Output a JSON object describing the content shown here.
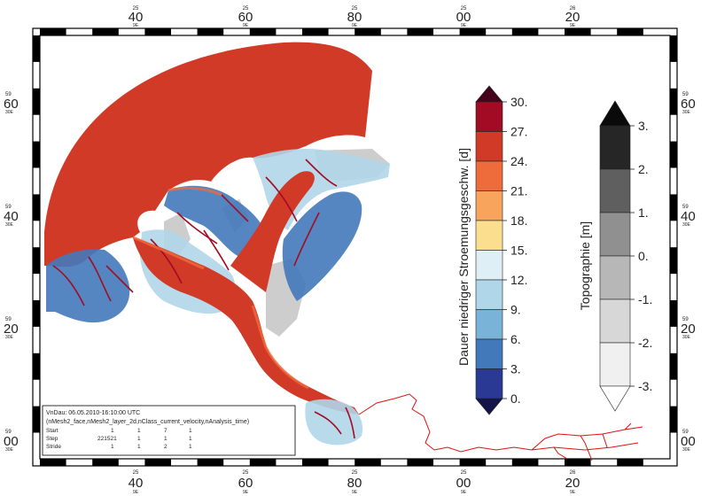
{
  "frame": {
    "top_labels": [
      {
        "sup": "25",
        "main": "40",
        "sub": "9E"
      },
      {
        "sup": "25",
        "main": "60",
        "sub": "9E"
      },
      {
        "sup": "25",
        "main": "80",
        "sub": "9E"
      },
      {
        "sup": "25",
        "main": "00",
        "sub": "9E"
      },
      {
        "sup": "26",
        "main": "20",
        "sub": "9E"
      }
    ],
    "left_labels": [
      {
        "sup": "59",
        "main": "60",
        "sub": "30E"
      },
      {
        "sup": "59",
        "main": "40",
        "sub": "30E"
      },
      {
        "sup": "59",
        "main": "20",
        "sub": "30E"
      },
      {
        "sup": "59",
        "main": "00",
        "sub": "30E"
      }
    ]
  },
  "legend_velocity": {
    "title": "Dauer niedriger Stroemungsgeschw. [d]",
    "ticks": [
      "30.",
      "27.",
      "24.",
      "21.",
      "18.",
      "15.",
      "12.",
      "9.",
      "6.",
      "3.",
      "0."
    ],
    "colors": [
      "#45041c",
      "#a10b23",
      "#d23a28",
      "#ee6b3c",
      "#f9a45c",
      "#fbdf8f",
      "#def0f6",
      "#b0d6e9",
      "#7ab3d8",
      "#4279bb",
      "#2a3994",
      "#13154a"
    ]
  },
  "legend_topo": {
    "title": "Topographie [m]",
    "ticks": [
      "3.",
      "2.",
      "1.",
      "0.",
      "-1.",
      "-2.",
      "-3."
    ],
    "colors": [
      "#0a0a0a",
      "#262626",
      "#5f5f5f",
      "#909090",
      "#b7b7b7",
      "#d7d7d7",
      "#f0f0f0",
      "#ffffff"
    ]
  },
  "info_box": {
    "line1": "VnDau: 06.05.2010-16:10:00 UTC",
    "line2": "(nMesh2_face,nMesh2_layer_2d,nClass_current_velocity,nAnalysis_time)",
    "rows": [
      {
        "label": "Start",
        "values": [
          "1",
          "1",
          "7",
          "1"
        ]
      },
      {
        "label": "Step",
        "values": [
          "221521",
          "1",
          "1",
          "1"
        ]
      },
      {
        "label": "Stride",
        "values": [
          "1",
          "1",
          "2",
          "1"
        ]
      }
    ]
  },
  "map_colors": {
    "sea": "#d23a28",
    "deep_red": "#a10b23",
    "orange": "#ee6b3c",
    "light_blue": "#b0d6e9",
    "blue": "#4279bb",
    "navy": "#2a3994",
    "land_gray": "#c8c8c8",
    "river": "#e01010"
  }
}
